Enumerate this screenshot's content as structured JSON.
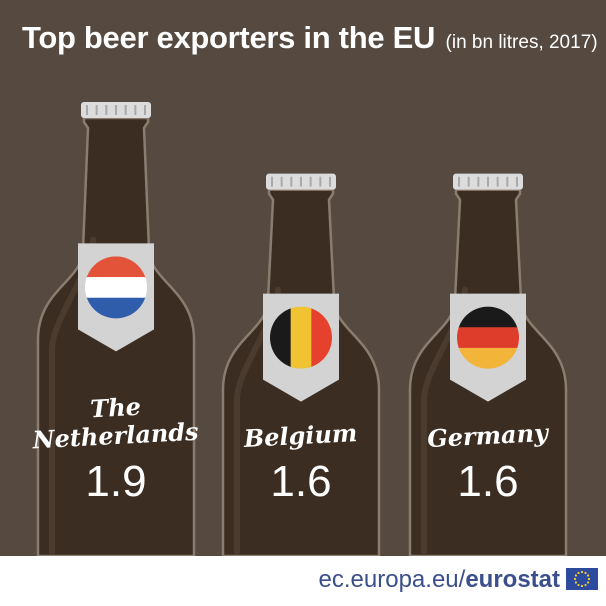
{
  "title": {
    "main": "Top beer exporters in the EU",
    "sub": "(in bn litres, 2017)"
  },
  "chart_data": {
    "type": "bar",
    "categories": [
      "The Netherlands",
      "Belgium",
      "Germany"
    ],
    "category_lines": [
      [
        "The",
        "Netherlands"
      ],
      [
        "Belgium"
      ],
      [
        "Germany"
      ]
    ],
    "values": [
      1.9,
      1.6,
      1.6
    ],
    "value_labels": [
      "1.9",
      "1.6",
      "1.6"
    ],
    "units": "bn litres",
    "year": 2017,
    "mark": "beer bottle"
  },
  "flags": [
    {
      "country": "Netherlands",
      "stripes": "horizontal",
      "colors": [
        "#e2533a",
        "#ffffff",
        "#2f5dac"
      ]
    },
    {
      "country": "Belgium",
      "stripes": "vertical",
      "colors": [
        "#1a1a1a",
        "#f1c232",
        "#e5412d"
      ]
    },
    {
      "country": "Germany",
      "stripes": "horizontal",
      "colors": [
        "#1a1a1a",
        "#df3d2c",
        "#f2b53a"
      ]
    }
  ],
  "source": {
    "domain": "ec.europa.eu/",
    "brand": "eurostat"
  },
  "colors": {
    "background": "#56493f",
    "bottle": "#3b2d21",
    "bottle_outline": "#8a7d70",
    "cap": "#dcdcdc",
    "label": "#d3d3d3",
    "text": "#ffffff",
    "footer_text": "#3b4f8c",
    "eu_blue": "#2d4a9e",
    "eu_star": "#f4d21f"
  }
}
